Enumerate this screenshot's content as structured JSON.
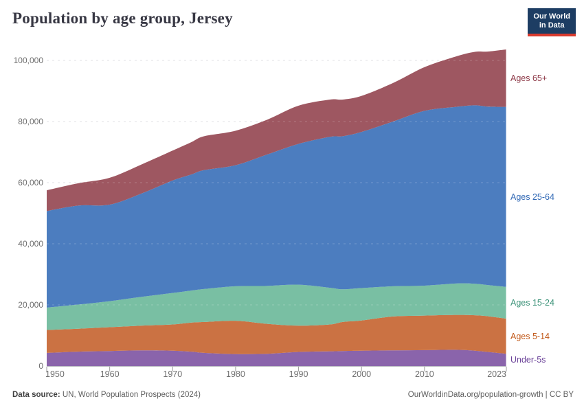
{
  "header": {
    "title": "Population by age group, Jersey",
    "logo": {
      "line1": "Our World",
      "line2": "in Data",
      "bg_color": "#1d3d63",
      "bar_color": "#d93a2d"
    }
  },
  "footer": {
    "source_label": "Data source:",
    "source_text": " UN, World Population Prospects (2024)",
    "credit": "OurWorldinData.org/population-growth | CC BY"
  },
  "chart_data": {
    "type": "area",
    "stacked": true,
    "title": "Population by age group, Jersey",
    "x": [
      1950,
      1955,
      1960,
      1965,
      1970,
      1973,
      1975,
      1980,
      1985,
      1990,
      1995,
      1997,
      2000,
      2005,
      2010,
      2015,
      2018,
      2020,
      2023
    ],
    "series": [
      {
        "name": "Under-5s",
        "area_color": "#8A64AB",
        "label_color": "#6C4399",
        "values": [
          4300,
          4700,
          4900,
          5100,
          5000,
          4700,
          4300,
          3900,
          4000,
          4600,
          4800,
          4900,
          5000,
          5100,
          5200,
          5300,
          5000,
          4600,
          4000
        ]
      },
      {
        "name": "Ages 5-14",
        "area_color": "#CB7243",
        "label_color": "#C25A1B",
        "values": [
          7500,
          7500,
          7800,
          8100,
          8600,
          9500,
          10100,
          10900,
          9800,
          8600,
          8800,
          9500,
          9900,
          11100,
          11300,
          11400,
          11600,
          11700,
          11500
        ]
      },
      {
        "name": "Ages 15-24",
        "area_color": "#79BFA3",
        "label_color": "#3B9278",
        "values": [
          7300,
          7900,
          8500,
          9400,
          10300,
          10500,
          10800,
          11300,
          12400,
          13400,
          12000,
          10700,
          10600,
          9900,
          9800,
          10300,
          10300,
          10200,
          10400
        ]
      },
      {
        "name": "Ages 25-64",
        "area_color": "#4C7DBF",
        "label_color": "#3068B5",
        "values": [
          31600,
          32400,
          31600,
          33800,
          36800,
          38000,
          38900,
          39600,
          43000,
          46100,
          49400,
          50100,
          51100,
          53900,
          57200,
          57800,
          58400,
          58400,
          58900
        ]
      },
      {
        "name": "Ages 65+",
        "area_color": "#9E5761",
        "label_color": "#8E3A48",
        "values": [
          6800,
          7300,
          8800,
          9500,
          9800,
          10600,
          11100,
          11300,
          11400,
          12500,
          12200,
          12000,
          11800,
          12600,
          14300,
          16500,
          17500,
          18000,
          18800
        ]
      }
    ],
    "x_ticks": [
      {
        "year": 1950,
        "label": "1950"
      },
      {
        "year": 1960,
        "label": "1960"
      },
      {
        "year": 1970,
        "label": "1970"
      },
      {
        "year": 1980,
        "label": "1980"
      },
      {
        "year": 1990,
        "label": "1990"
      },
      {
        "year": 2000,
        "label": "2000"
      },
      {
        "year": 2010,
        "label": "2010"
      },
      {
        "year": 2023,
        "label": "2023"
      }
    ],
    "y_ticks": [
      {
        "value": 0,
        "label": "0"
      },
      {
        "value": 20000,
        "label": "20,000"
      },
      {
        "value": 40000,
        "label": "40,000"
      },
      {
        "value": 60000,
        "label": "60,000"
      },
      {
        "value": 80000,
        "label": "80,000"
      },
      {
        "value": 100000,
        "label": "100,000"
      }
    ],
    "xlim": [
      1950,
      2023
    ],
    "ylim": [
      0,
      105000
    ],
    "grid": "dashed-horizontal",
    "legend_position": "right-inline"
  }
}
